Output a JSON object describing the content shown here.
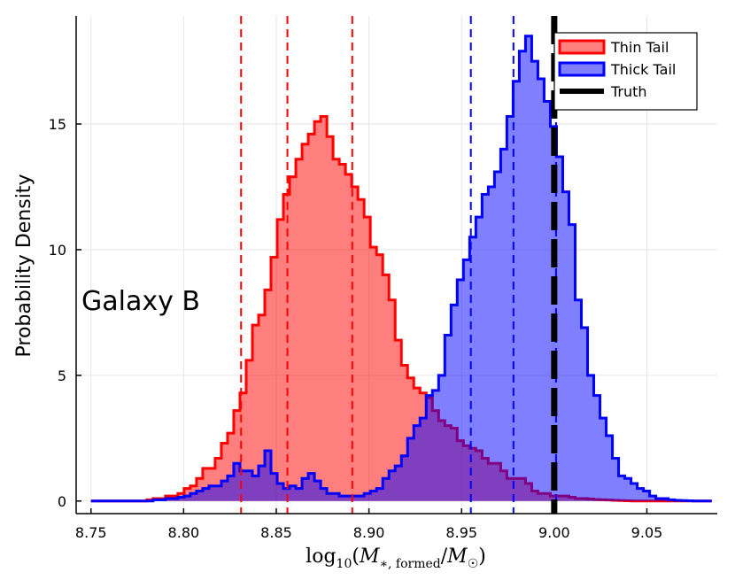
{
  "chart_data": {
    "type": "histogram",
    "title": "",
    "ylabel": "Probability Density",
    "xlabel": "log10(M*,formed/M☉)",
    "xlabel_parts": {
      "func": "log",
      "func_sub": "10",
      "open": "(",
      "m1": "M",
      "m1_sub": "∗, formed",
      "slash": "/",
      "m2": "M",
      "m2_sub": "☉",
      "close": ")"
    },
    "xlim": [
      8.742,
      9.088
    ],
    "ylim": [
      -0.5,
      19.3
    ],
    "xticks": [
      8.75,
      8.8,
      8.85,
      8.9,
      8.95,
      9.0,
      9.05
    ],
    "xtick_labels": [
      "8.75",
      "8.80",
      "8.85",
      "8.90",
      "8.95",
      "9.00",
      "9.05"
    ],
    "yticks": [
      0,
      5,
      10,
      15
    ],
    "ytick_labels": [
      "0",
      "5",
      "10",
      "15"
    ],
    "grid": true,
    "legend_position": "top-right",
    "annotation": "Galaxy B",
    "legend": [
      {
        "label": "Thin Tail",
        "color": "#ff0000"
      },
      {
        "label": "Thick Tail",
        "color": "#0000ff"
      },
      {
        "label": "Truth",
        "color": "#000000"
      }
    ],
    "bin_start": 8.75,
    "bin_width": 0.00335,
    "series": [
      {
        "name": "Thin Tail",
        "color": "#ff0000",
        "fill": "rgba(255,0,0,0.5)",
        "values": [
          0,
          0,
          0,
          0,
          0,
          0,
          0,
          0,
          0,
          0.05,
          0.1,
          0.1,
          0.2,
          0.2,
          0.3,
          0.5,
          0.6,
          0.9,
          1.3,
          1.3,
          1.7,
          2.3,
          2.7,
          3.6,
          4.3,
          5.6,
          7.0,
          7.4,
          8.4,
          9.7,
          11.2,
          12.2,
          12.9,
          13.6,
          14.2,
          14.6,
          15.1,
          15.3,
          14.5,
          13.6,
          13.4,
          13.0,
          12.5,
          12.0,
          11.3,
          10.1,
          9.8,
          9.0,
          8.0,
          6.4,
          5.4,
          4.9,
          4.5,
          4.3,
          4.1,
          3.6,
          3.2,
          3.0,
          2.9,
          2.4,
          2.2,
          2.1,
          2.0,
          1.7,
          1.5,
          1.5,
          1.2,
          0.9,
          0.9,
          0.9,
          0.7,
          0.4,
          0.3,
          0.3,
          0.2,
          0.2,
          0.2,
          0.15,
          0.1,
          0.1,
          0.08,
          0.06,
          0.05,
          0.04,
          0.03,
          0.02,
          0.01,
          0,
          0,
          0,
          0,
          0,
          0,
          0,
          0,
          0,
          0,
          0,
          0,
          0
        ]
      },
      {
        "name": "Thick Tail",
        "color": "#0000ff",
        "fill": "rgba(0,0,255,0.5)",
        "values": [
          0,
          0,
          0,
          0,
          0,
          0,
          0,
          0,
          0,
          0,
          0.05,
          0.05,
          0.1,
          0.1,
          0.15,
          0.2,
          0.3,
          0.4,
          0.5,
          0.6,
          0.6,
          0.8,
          1.0,
          1.5,
          1.2,
          1.2,
          1.0,
          1.4,
          2.0,
          1.1,
          0.7,
          0.5,
          0.6,
          0.5,
          0.9,
          1.1,
          0.8,
          0.5,
          0.3,
          0.3,
          0.2,
          0.2,
          0.2,
          0.2,
          0.3,
          0.4,
          0.5,
          0.9,
          1.2,
          1.4,
          1.8,
          2.5,
          3.0,
          3.3,
          4.2,
          4.4,
          5.0,
          6.6,
          7.8,
          8.8,
          9.6,
          10.5,
          11.3,
          12.2,
          12.5,
          13.1,
          14.0,
          15.3,
          16.7,
          17.9,
          18.5,
          17.5,
          16.8,
          15.9,
          14.9,
          13.7,
          12.3,
          11.0,
          8.0,
          6.9,
          5.0,
          4.2,
          3.3,
          2.6,
          1.7,
          1.0,
          0.9,
          0.7,
          0.5,
          0.4,
          0.2,
          0.1,
          0.1,
          0.05,
          0.03,
          0.02,
          0.01,
          0,
          0,
          0
        ]
      }
    ],
    "vlines": [
      {
        "name": "Thin Tail quantile 16%",
        "x": 8.831,
        "color": "#ff0000",
        "style": "dashed"
      },
      {
        "name": "Thin Tail median",
        "x": 8.856,
        "color": "#ff0000",
        "style": "dashed"
      },
      {
        "name": "Thin Tail quantile 84%",
        "x": 8.891,
        "color": "#ff0000",
        "style": "dashed"
      },
      {
        "name": "Thick Tail quantile 16%",
        "x": 8.955,
        "color": "#0000ff",
        "style": "dashed"
      },
      {
        "name": "Thick Tail median",
        "x": 8.978,
        "color": "#0000ff",
        "style": "dashed"
      },
      {
        "name": "Thick Tail quantile 84%",
        "x": 9.001,
        "color": "#0000ff",
        "style": "dashed"
      },
      {
        "name": "Truth",
        "x": 9.0,
        "color": "#000000",
        "style": "thick-dashed"
      }
    ]
  }
}
